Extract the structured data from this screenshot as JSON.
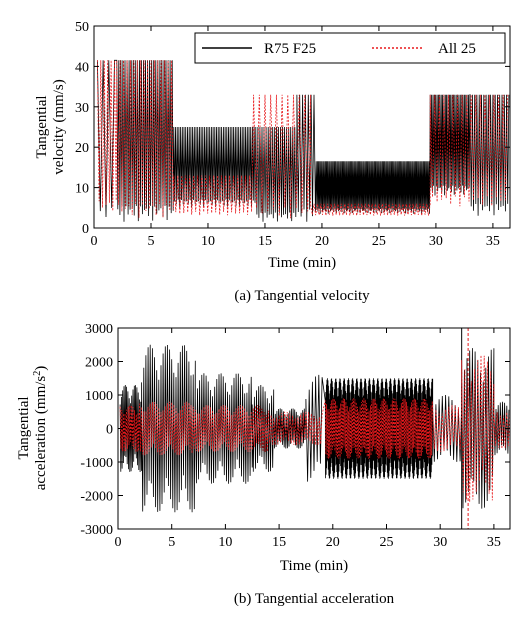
{
  "colors": {
    "r75_f25": "#000000",
    "all_25": "#e8191c"
  },
  "chart_data": [
    {
      "type": "line",
      "caption": "(a) Tangential velocity",
      "xlabel": "Time (min)",
      "ylabel_line1": "Tangential",
      "ylabel_line2": "velocity (mm/s)",
      "xlim": [
        0,
        36.5
      ],
      "ylim": [
        0,
        50
      ],
      "xticks": [
        0,
        5,
        10,
        15,
        20,
        25,
        30,
        35
      ],
      "yticks": [
        0,
        10,
        20,
        30,
        40,
        50
      ],
      "legend": {
        "placement": "top-right",
        "entries": [
          "R75 F25",
          "All 25"
        ]
      },
      "grid": false,
      "series": [
        {
          "name": "R75 F25",
          "style": "solid",
          "segments": [
            {
              "t": [
                0.3,
                2.0
              ],
              "high": 41.5,
              "low": 1.0,
              "osc": 0.5
            },
            {
              "t": [
                2.0,
                7.0
              ],
              "high": 41.5,
              "low": 1.5,
              "osc": 0.18
            },
            {
              "t": [
                7.0,
                14.2
              ],
              "high": 25,
              "low": 5,
              "osc": 0.15
            },
            {
              "t": [
                14.2,
                17.8
              ],
              "high": 25,
              "low": 1.5,
              "osc": 0.18
            },
            {
              "t": [
                17.8,
                19.5
              ],
              "high": 33,
              "low": 1.5,
              "osc": 0.25
            },
            {
              "t": [
                19.5,
                29.5
              ],
              "high": 16.5,
              "low": 3.5,
              "osc": 0.1
            },
            {
              "t": [
                29.5,
                33.0
              ],
              "high": 33,
              "low": 8,
              "osc": 0.12
            },
            {
              "t": [
                33.0,
                36.5
              ],
              "high": 33,
              "low": 3,
              "osc": 0.2
            }
          ]
        },
        {
          "name": "All 25",
          "style": "dotted",
          "segments": [
            {
              "t": [
                0.3,
                2.0
              ],
              "high": 41.5,
              "low": 3,
              "osc": 0.3
            },
            {
              "t": [
                2.0,
                7.0
              ],
              "high": 41.5,
              "low": 2,
              "osc": 0.3
            },
            {
              "t": [
                7.0,
                14.0
              ],
              "high": 13,
              "low": 3,
              "osc": 0.35
            },
            {
              "t": [
                14.0,
                19.0
              ],
              "high": 33,
              "low": 2,
              "osc": 0.5
            },
            {
              "t": [
                19.0,
                29.5
              ],
              "high": 6,
              "low": 3,
              "osc": 0.3
            },
            {
              "t": [
                29.5,
                36.5
              ],
              "high": 33,
              "low": 5,
              "osc": 0.4
            }
          ]
        }
      ]
    },
    {
      "type": "line",
      "caption": "(b) Tangential acceleration",
      "xlabel": "Time (min)",
      "ylabel_line1": "Tangential",
      "ylabel_line2": "acceleration (mm/s",
      "ylabel_sup": "2",
      "ylabel_close": ")",
      "xlim": [
        0,
        36.5
      ],
      "ylim": [
        -3000,
        3000
      ],
      "xticks": [
        0,
        5,
        10,
        15,
        20,
        25,
        30,
        35
      ],
      "yticks": [
        -3000,
        -2000,
        -1000,
        0,
        1000,
        2000,
        3000
      ],
      "grid": false,
      "series": [
        {
          "name": "R75 F25",
          "style": "solid",
          "segments": [
            {
              "t": [
                0.2,
                2.2
              ],
              "amp": 1300,
              "osc": 0.12
            },
            {
              "t": [
                2.2,
                7.2
              ],
              "amp": 2500,
              "osc": 0.2
            },
            {
              "t": [
                7.2,
                12.5
              ],
              "amp": 1650,
              "osc": 0.2
            },
            {
              "t": [
                12.5,
                14.5
              ],
              "amp": 1300,
              "osc": 0.2
            },
            {
              "t": [
                14.5,
                17.5
              ],
              "amp": 600,
              "osc": 0.15
            },
            {
              "t": [
                17.5,
                19.0
              ],
              "amp": 1600,
              "osc": 0.3
            },
            {
              "t": [
                19.3,
                29.3
              ],
              "amp": 1500,
              "osc": 0.05
            },
            {
              "t": [
                29.3,
                32.0
              ],
              "amp": 1000,
              "osc": 0.3
            },
            {
              "t": [
                32.0,
                35.0
              ],
              "amp": 2400,
              "osc": 0.25
            },
            {
              "t": [
                35.0,
                36.5
              ],
              "amp": 800,
              "osc": 0.2
            }
          ],
          "spike": {
            "t": 32.0,
            "amp": 3000
          }
        },
        {
          "name": "All 25",
          "style": "dotted",
          "segments": [
            {
              "t": [
                0.2,
                2.0
              ],
              "amp": 700,
              "osc": 0.15
            },
            {
              "t": [
                2.0,
                7.0
              ],
              "amp": 800,
              "osc": 0.2
            },
            {
              "t": [
                7.0,
                14.0
              ],
              "amp": 700,
              "osc": 0.2
            },
            {
              "t": [
                14.0,
                19.0
              ],
              "amp": 500,
              "osc": 0.25
            },
            {
              "t": [
                19.3,
                29.3
              ],
              "amp": 900,
              "osc": 0.12
            },
            {
              "t": [
                29.3,
                32.0
              ],
              "amp": 700,
              "osc": 0.3
            },
            {
              "t": [
                32.0,
                35.0
              ],
              "amp": 2200,
              "osc": 0.3
            },
            {
              "t": [
                35.0,
                36.5
              ],
              "amp": 600,
              "osc": 0.3
            }
          ],
          "spike": {
            "t": 32.6,
            "amp": 3000
          }
        }
      ]
    }
  ]
}
